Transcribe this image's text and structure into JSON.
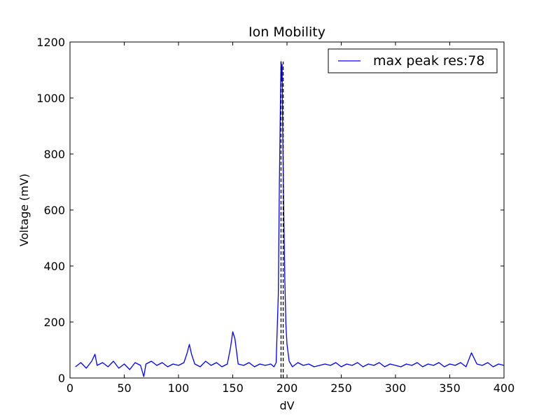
{
  "chart_data": {
    "type": "line",
    "title": "Ion Mobility",
    "xlabel": "dV",
    "ylabel": "Voltage (mV)",
    "xlim": [
      0,
      400
    ],
    "ylim": [
      0,
      1200
    ],
    "xticks": [
      0,
      50,
      100,
      150,
      200,
      250,
      300,
      350,
      400
    ],
    "yticks": [
      0,
      200,
      400,
      600,
      800,
      1000,
      1200
    ],
    "grid": false,
    "legend_position": "top-right",
    "series": [
      {
        "name": "max peak res:78",
        "color": "#0000ff",
        "style": "solid",
        "x": [
          5,
          10,
          15,
          20,
          23,
          25,
          30,
          35,
          40,
          45,
          50,
          55,
          60,
          65,
          68,
          70,
          75,
          80,
          85,
          90,
          95,
          100,
          105,
          108,
          110,
          112,
          115,
          120,
          125,
          130,
          135,
          140,
          145,
          148,
          150,
          152,
          155,
          160,
          165,
          170,
          175,
          180,
          185,
          188,
          190,
          192,
          193,
          194,
          194.5,
          195,
          195.5,
          196,
          197,
          198,
          199,
          200,
          202,
          205,
          210,
          215,
          220,
          225,
          230,
          235,
          240,
          245,
          250,
          255,
          260,
          265,
          270,
          275,
          280,
          285,
          290,
          295,
          300,
          305,
          310,
          315,
          320,
          325,
          330,
          335,
          340,
          345,
          350,
          355,
          360,
          365,
          370,
          375,
          380,
          385,
          390,
          395,
          400
        ],
        "y": [
          40,
          55,
          35,
          60,
          85,
          45,
          55,
          40,
          60,
          35,
          50,
          30,
          55,
          45,
          5,
          50,
          60,
          45,
          55,
          40,
          50,
          45,
          55,
          90,
          120,
          85,
          50,
          40,
          60,
          45,
          55,
          40,
          50,
          110,
          165,
          140,
          50,
          45,
          55,
          40,
          50,
          45,
          50,
          40,
          55,
          300,
          700,
          1000,
          1130,
          1060,
          1120,
          900,
          600,
          350,
          190,
          120,
          60,
          40,
          55,
          45,
          50,
          40,
          45,
          50,
          45,
          55,
          40,
          50,
          45,
          55,
          40,
          50,
          45,
          55,
          40,
          50,
          45,
          40,
          50,
          45,
          55,
          40,
          50,
          45,
          55,
          40,
          50,
          45,
          55,
          40,
          90,
          50,
          45,
          55,
          40,
          50,
          45
        ]
      }
    ],
    "vlines": [
      {
        "x": 194.5,
        "ymin": 0,
        "ymax": 1130,
        "color": "#000000",
        "style": "dashed"
      },
      {
        "x": 196.5,
        "ymin": 0,
        "ymax": 1130,
        "color": "#000000",
        "style": "dashed"
      }
    ]
  }
}
